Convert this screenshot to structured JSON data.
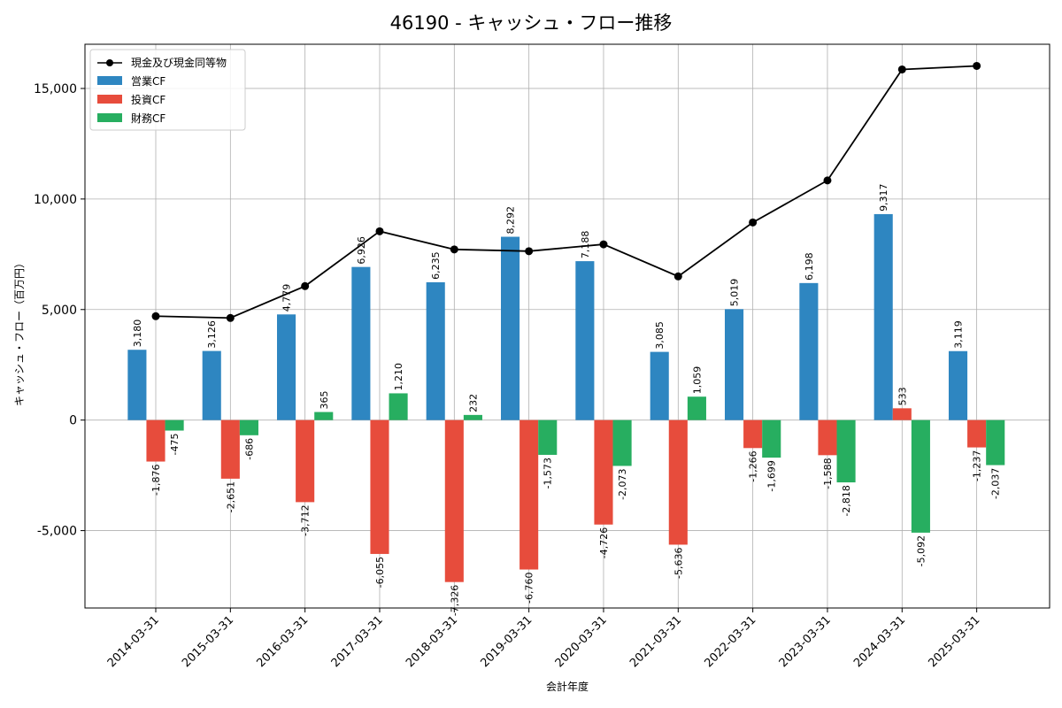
{
  "chart_data": {
    "type": "bar",
    "title": "46190 - キャッシュ・フロー推移",
    "xlabel": "会計年度",
    "ylabel": "キャッシュ・フロー（百万円）",
    "categories": [
      "2014-03-31",
      "2015-03-31",
      "2016-03-31",
      "2017-03-31",
      "2018-03-31",
      "2019-03-31",
      "2020-03-31",
      "2021-03-31",
      "2022-03-31",
      "2023-03-31",
      "2024-03-31",
      "2025-03-31"
    ],
    "ylim": [
      -8500,
      17000
    ],
    "yticks": [
      -5000,
      0,
      5000,
      10000,
      15000
    ],
    "ytick_labels": [
      "-5,000",
      "0",
      "5,000",
      "10,000",
      "15,000"
    ],
    "grid": true,
    "legend_position": "top-left",
    "series": [
      {
        "name": "営業CF",
        "kind": "bar",
        "color": "#2e86c1",
        "values": [
          3180,
          3126,
          4779,
          6926,
          6235,
          8292,
          7188,
          3085,
          5019,
          6198,
          9317,
          3119
        ]
      },
      {
        "name": "投資CF",
        "kind": "bar",
        "color": "#e74c3c",
        "values": [
          -1876,
          -2651,
          -3712,
          -6055,
          -7326,
          -6760,
          -4726,
          -5636,
          -1266,
          -1588,
          533,
          -1237
        ]
      },
      {
        "name": "財務CF",
        "kind": "bar",
        "color": "#27ae60",
        "values": [
          -475,
          -686,
          365,
          1210,
          232,
          -1573,
          -2073,
          1059,
          -1699,
          -2818,
          -5092,
          -2037
        ]
      },
      {
        "name": "現金及び現金同等物",
        "kind": "line",
        "color": "#000000",
        "values": [
          4700,
          4620,
          6060,
          8540,
          7720,
          7640,
          7950,
          6500,
          8940,
          10840,
          15860,
          16020
        ]
      }
    ]
  }
}
